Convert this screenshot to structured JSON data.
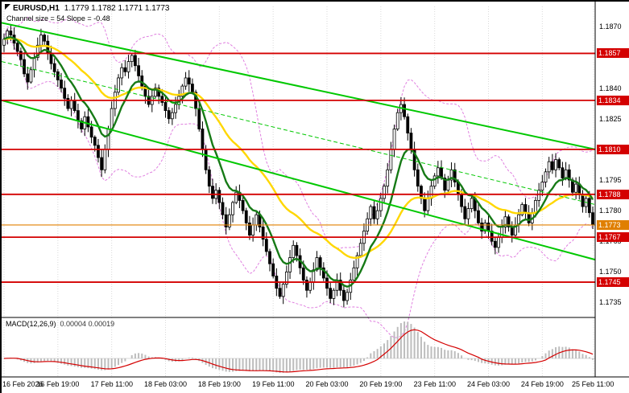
{
  "header": {
    "symbol": "EURUSD,H1",
    "ohlc": "1.1779 1.1782 1.1771 1.1773",
    "channel_info": "Channel size = 54 Slope = -0.48"
  },
  "colors": {
    "background": "#ffffff",
    "grid": "#d9d9d9",
    "candle_up_fill": "#ffffff",
    "candle_down_fill": "#000000",
    "candle_outline": "#000000",
    "ma_fast": "#167a16",
    "ma_slow": "#ffd700",
    "bollinger": "#e080e0",
    "channel": "#00c800",
    "resistance": "#d40000",
    "current_price": "#e07f00",
    "macd_histogram": "#bdbdbd",
    "macd_signal": "#d40000",
    "axis_text": "#000000"
  },
  "price_axis": {
    "ticks": [
      "1.1870",
      "1.1840",
      "1.1825",
      "1.1795",
      "1.1780",
      "1.1765",
      "1.1750",
      "1.1735"
    ],
    "levels": [
      {
        "price": 1.1857,
        "label": "1.1857",
        "kind": "resistance"
      },
      {
        "price": 1.1834,
        "label": "1.1834",
        "kind": "resistance"
      },
      {
        "price": 1.181,
        "label": "1.1810",
        "kind": "resistance"
      },
      {
        "price": 1.1788,
        "label": "1.1788",
        "kind": "resistance"
      },
      {
        "price": 1.1773,
        "label": "1.1773",
        "kind": "current"
      },
      {
        "price": 1.1767,
        "label": "1.1767",
        "kind": "resistance"
      },
      {
        "price": 1.1745,
        "label": "1.1745",
        "kind": "resistance"
      }
    ]
  },
  "time_axis": {
    "labels": [
      {
        "text": "16 Feb 2026",
        "bar": 0
      },
      {
        "text": "16 Feb 19:00",
        "bar": 16
      },
      {
        "text": "17 Feb 11:00",
        "bar": 32
      },
      {
        "text": "18 Feb 03:00",
        "bar": 48
      },
      {
        "text": "18 Feb 19:00",
        "bar": 64
      },
      {
        "text": "19 Feb 11:00",
        "bar": 80
      },
      {
        "text": "20 Feb 03:00",
        "bar": 96
      },
      {
        "text": "20 Feb 19:00",
        "bar": 112
      },
      {
        "text": "23 Feb 11:00",
        "bar": 128
      },
      {
        "text": "24 Feb 03:00",
        "bar": 144
      },
      {
        "text": "24 Feb 19:00",
        "bar": 160
      },
      {
        "text": "25 Feb 11:00",
        "bar": 176
      }
    ]
  },
  "indicators": {
    "macd": {
      "label": "MACD(12,26,9)",
      "values": "0.00004 0.00019",
      "fast": 12,
      "slow": 26,
      "signal": 9
    },
    "ma_fast_period": 10,
    "ma_slow_period": 34,
    "bollinger": {
      "period": 20,
      "deviation": 2
    }
  },
  "channel": {
    "lines": [
      {
        "name": "channel-upper-line",
        "from_price": 1.1872,
        "to_price": 1.181,
        "style": "solid"
      },
      {
        "name": "channel-mid-line",
        "from_price": 1.1853,
        "to_price": 1.1783,
        "style": "dash"
      },
      {
        "name": "channel-lower-line",
        "from_price": 1.1834,
        "to_price": 1.1756,
        "style": "solid"
      }
    ]
  },
  "chart_data": {
    "type": "candlestick",
    "symbol": "EURUSD",
    "timeframe": "H1",
    "y_range": [
      1.17285,
      1.188
    ],
    "open_first": 1.1861,
    "ohlc_current": {
      "open": 1.1779,
      "high": 1.1782,
      "low": 1.1771,
      "close": 1.1773
    },
    "resistance_levels": [
      1.1857,
      1.1834,
      1.181,
      1.1788,
      1.1767,
      1.1745
    ],
    "current_price": 1.1773,
    "wick_min": 8e-05,
    "wick_extra": 0.0003,
    "closes": [
      1.1864,
      1.1868,
      1.1866,
      1.1862,
      1.1858,
      1.1854,
      1.1847,
      1.1843,
      1.1849,
      1.1855,
      1.1861,
      1.1866,
      1.1863,
      1.1857,
      1.1852,
      1.1848,
      1.1844,
      1.184,
      1.1835,
      1.183,
      1.1834,
      1.1829,
      1.1824,
      1.182,
      1.1826,
      1.1821,
      1.1816,
      1.1812,
      1.1806,
      1.18,
      1.181,
      1.182,
      1.183,
      1.1838,
      1.1845,
      1.185,
      1.1848,
      1.1853,
      1.1856,
      1.1851,
      1.1846,
      1.1841,
      1.1836,
      1.1832,
      1.1836,
      1.184,
      1.1836,
      1.1833,
      1.1829,
      1.1825,
      1.1828,
      1.1832,
      1.1836,
      1.1841,
      1.1845,
      1.1842,
      1.1838,
      1.183,
      1.182,
      1.181,
      1.18,
      1.1792,
      1.1786,
      1.179,
      1.1784,
      1.1778,
      1.1772,
      1.1778,
      1.1784,
      1.1789,
      1.1785,
      1.178,
      1.1774,
      1.1768,
      1.1773,
      1.1778,
      1.1772,
      1.1766,
      1.176,
      1.1754,
      1.1748,
      1.1742,
      1.1738,
      1.1744,
      1.175,
      1.1757,
      1.1763,
      1.1758,
      1.1752,
      1.1746,
      1.1741,
      1.1745,
      1.1751,
      1.1757,
      1.1752,
      1.1747,
      1.1742,
      1.1737,
      1.1741,
      1.1746,
      1.1741,
      1.1736,
      1.174,
      1.1746,
      1.1752,
      1.1758,
      1.1764,
      1.177,
      1.1776,
      1.1782,
      1.1776,
      1.178,
      1.1786,
      1.1792,
      1.18,
      1.181,
      1.182,
      1.1828,
      1.1832,
      1.1826,
      1.1818,
      1.181,
      1.18,
      1.1792,
      1.1786,
      1.178,
      1.1786,
      1.1792,
      1.1797,
      1.1801,
      1.1796,
      1.179,
      1.1795,
      1.18,
      1.1794,
      1.1788,
      1.1782,
      1.1776,
      1.1781,
      1.1786,
      1.178,
      1.1774,
      1.177,
      1.1774,
      1.177,
      1.1765,
      1.1762,
      1.1767,
      1.1772,
      1.1777,
      1.1772,
      1.1768,
      1.1773,
      1.1778,
      1.1783,
      1.1779,
      1.1774,
      1.1779,
      1.1785,
      1.179,
      1.1794,
      1.1799,
      1.1804,
      1.18,
      1.1805,
      1.1801,
      1.1796,
      1.18,
      1.1795,
      1.1789,
      1.1793,
      1.1788,
      1.1782,
      1.1786,
      1.1779,
      1.1773
    ]
  }
}
